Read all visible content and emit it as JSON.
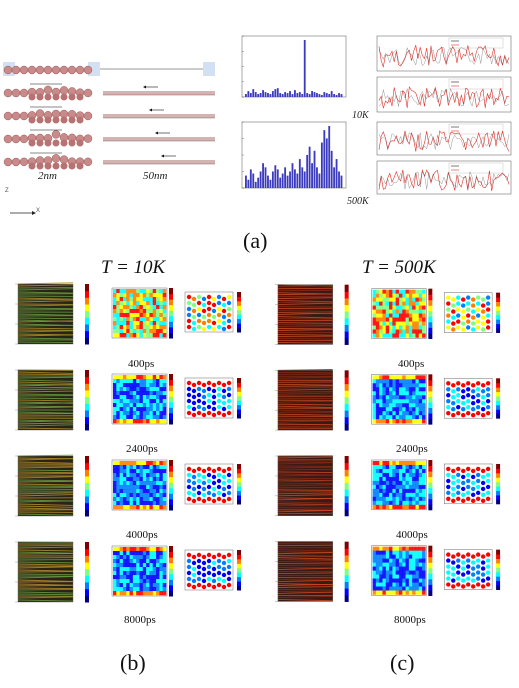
{
  "figure": {
    "panel_a": {
      "label": "(a)",
      "scale_labels": [
        "2nm",
        "50nm"
      ],
      "axis_z": "Z",
      "axis_x": "X",
      "temperature_labels": [
        "10K",
        "500K"
      ],
      "bar_color": "#3b3bbf",
      "line_color": "#e0302a"
    },
    "panel_b": {
      "label": "(b)",
      "title": "T = 10K",
      "times": [
        "400ps",
        "2400ps",
        "4000ps",
        "8000ps"
      ]
    },
    "panel_c": {
      "label": "(c)",
      "title": "T = 500K",
      "times": [
        "400ps",
        "2400ps",
        "4000ps",
        "8000ps"
      ]
    }
  }
}
